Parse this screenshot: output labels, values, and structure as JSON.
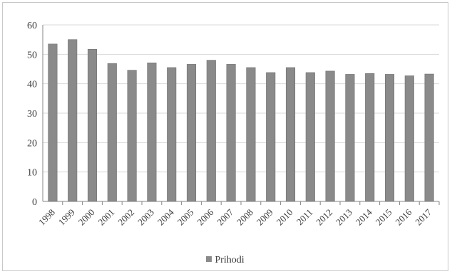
{
  "chart_data": {
    "type": "bar",
    "categories": [
      "1998",
      "1999",
      "2000",
      "2001",
      "2002",
      "2003",
      "2004",
      "2005",
      "2006",
      "2007",
      "2008",
      "2009",
      "2010",
      "2011",
      "2012",
      "2013",
      "2014",
      "2015",
      "2016",
      "2017"
    ],
    "series": [
      {
        "name": "Prihodi",
        "values": [
          53.5,
          55,
          51.7,
          46.9,
          44.6,
          47.1,
          45.5,
          46.6,
          48,
          46.6,
          45.5,
          43.8,
          45.5,
          43.8,
          44.3,
          43.2,
          43.5,
          43.2,
          42.7,
          43.3
        ]
      }
    ],
    "yticks": [
      "0",
      "10",
      "20",
      "30",
      "40",
      "50",
      "60"
    ],
    "ylim": [
      0,
      60
    ],
    "title": "",
    "xlabel": "",
    "ylabel": "",
    "grid": true,
    "legend_position": "bottom",
    "colors": {
      "bar": "#8a8a8a",
      "bar_edge": "#6f6f6f",
      "grid": "#d9d9d9",
      "axis": "#868686",
      "text": "#404040"
    }
  }
}
